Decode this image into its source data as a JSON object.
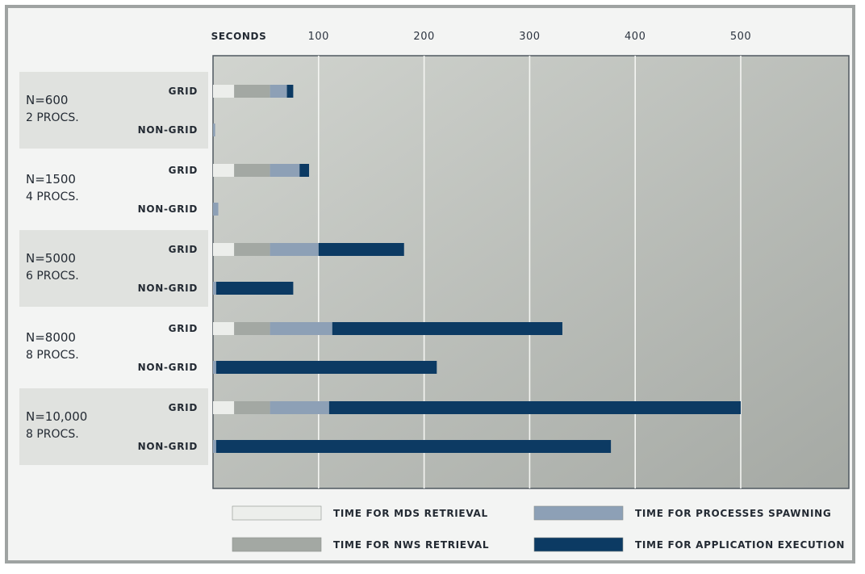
{
  "chart_data": {
    "type": "bar",
    "orientation": "horizontal",
    "stacked": true,
    "x_title": "SECONDS",
    "x_ticks": [
      100,
      200,
      300,
      400,
      500
    ],
    "xlim": [
      0,
      600
    ],
    "grid": true,
    "legend_position": "bottom",
    "series": [
      {
        "name": "TIME FOR MDS RETRIEVAL",
        "color": "#eceeeb"
      },
      {
        "name": "TIME FOR NWS RETRIEVAL",
        "color": "#a3a8a3"
      },
      {
        "name": "TIME FOR PROCESSES SPAWNING",
        "color": "#8da0b6"
      },
      {
        "name": "TIME FOR APPLICATION EXECUTION",
        "color": "#0c3a63"
      }
    ],
    "groups": [
      {
        "n": "N=600",
        "procs": "2 PROCS.",
        "shaded": true,
        "rows": [
          {
            "label": "GRID",
            "values": [
              20,
              34,
              16,
              6
            ]
          },
          {
            "label": "NON-GRID",
            "values": [
              0,
              0,
              2,
              0
            ]
          }
        ]
      },
      {
        "n": "N=1500",
        "procs": "4 PROCS.",
        "shaded": false,
        "rows": [
          {
            "label": "GRID",
            "values": [
              20,
              34,
              28,
              9
            ]
          },
          {
            "label": "NON-GRID",
            "values": [
              0,
              0,
              5,
              0
            ]
          }
        ]
      },
      {
        "n": "N=5000",
        "procs": "6 PROCS.",
        "shaded": true,
        "rows": [
          {
            "label": "GRID",
            "values": [
              20,
              34,
              46,
              81
            ]
          },
          {
            "label": "NON-GRID",
            "values": [
              0,
              0,
              3,
              73
            ]
          }
        ]
      },
      {
        "n": "N=8000",
        "procs": "8 PROCS.",
        "shaded": false,
        "rows": [
          {
            "label": "GRID",
            "values": [
              20,
              34,
              59,
              218
            ]
          },
          {
            "label": "NON-GRID",
            "values": [
              0,
              0,
              3,
              209
            ]
          }
        ]
      },
      {
        "n": "N=10,000",
        "procs": "8 PROCS.",
        "shaded": true,
        "rows": [
          {
            "label": "GRID",
            "values": [
              20,
              34,
              56,
              390
            ]
          },
          {
            "label": "NON-GRID",
            "values": [
              0,
              0,
              3,
              374
            ]
          }
        ]
      }
    ]
  }
}
